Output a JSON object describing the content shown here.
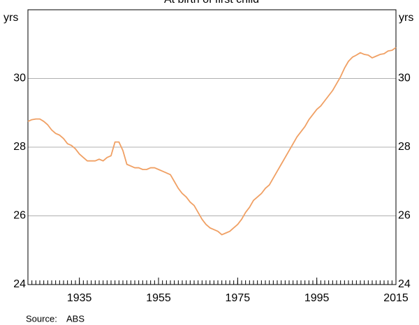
{
  "chart_data": {
    "type": "line",
    "title": "At birth of first child",
    "y_label": "yrs",
    "y2_label": "yrs",
    "x": [
      1922,
      1923,
      1924,
      1925,
      1926,
      1927,
      1928,
      1929,
      1930,
      1931,
      1932,
      1933,
      1934,
      1935,
      1936,
      1937,
      1938,
      1939,
      1940,
      1941,
      1942,
      1943,
      1944,
      1945,
      1946,
      1947,
      1948,
      1949,
      1950,
      1951,
      1952,
      1953,
      1954,
      1955,
      1956,
      1957,
      1958,
      1959,
      1960,
      1961,
      1962,
      1963,
      1964,
      1965,
      1966,
      1967,
      1968,
      1969,
      1970,
      1971,
      1972,
      1973,
      1974,
      1975,
      1976,
      1977,
      1978,
      1979,
      1980,
      1981,
      1982,
      1983,
      1984,
      1985,
      1986,
      1987,
      1988,
      1989,
      1990,
      1991,
      1992,
      1993,
      1994,
      1995,
      1996,
      1997,
      1998,
      1999,
      2000,
      2001,
      2002,
      2003,
      2004,
      2005,
      2006,
      2007,
      2008,
      2009,
      2010,
      2011,
      2012,
      2013,
      2014,
      2015
    ],
    "series": [
      {
        "name": "At birth of first child",
        "color": "#f0a064",
        "values": [
          28.75,
          28.8,
          28.82,
          28.82,
          28.75,
          28.65,
          28.5,
          28.4,
          28.35,
          28.25,
          28.1,
          28.05,
          27.95,
          27.8,
          27.7,
          27.6,
          27.6,
          27.6,
          27.65,
          27.6,
          27.7,
          27.75,
          28.15,
          28.15,
          27.9,
          27.5,
          27.45,
          27.4,
          27.4,
          27.35,
          27.35,
          27.4,
          27.4,
          27.35,
          27.3,
          27.25,
          27.2,
          27.0,
          26.8,
          26.65,
          26.55,
          26.4,
          26.3,
          26.1,
          25.9,
          25.75,
          25.65,
          25.6,
          25.55,
          25.45,
          25.5,
          25.55,
          25.65,
          25.75,
          25.9,
          26.1,
          26.25,
          26.45,
          26.55,
          26.65,
          26.8,
          26.9,
          27.1,
          27.3,
          27.5,
          27.7,
          27.9,
          28.1,
          28.3,
          28.45,
          28.6,
          28.8,
          28.95,
          29.1,
          29.2,
          29.35,
          29.5,
          29.65,
          29.85,
          30.05,
          30.3,
          30.5,
          30.62,
          30.68,
          30.75,
          30.7,
          30.68,
          30.6,
          30.65,
          30.7,
          30.72,
          30.8,
          30.82,
          30.9
        ]
      }
    ],
    "xlim": [
      1922,
      2015
    ],
    "xticks": [
      1935,
      1955,
      1975,
      1995,
      2015
    ],
    "ylim": [
      24,
      32
    ],
    "yticks": [
      24,
      26,
      28,
      30
    ],
    "grid": true,
    "source": {
      "label": "Source:",
      "text": "ABS"
    }
  }
}
